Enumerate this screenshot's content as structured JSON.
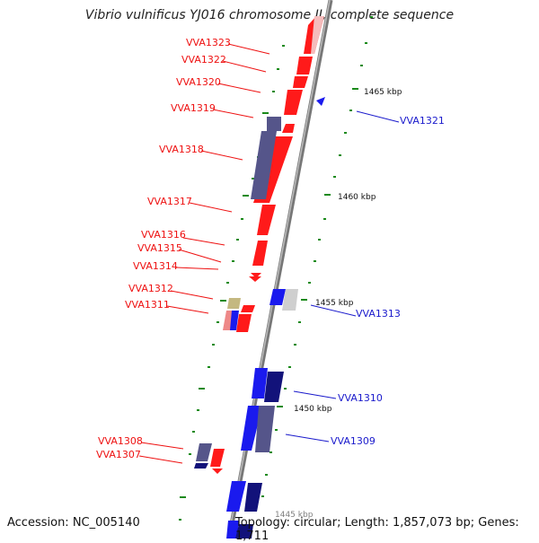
{
  "title": "Vibrio vulnificus YJ016 chromosome II, complete sequence",
  "footer": {
    "accession": "Accession: NC_005140",
    "info": "Topology: circular; Length: 1,857,073 bp; Genes: 1,711"
  },
  "colors": {
    "forward_label": "#ee1111",
    "reverse_label": "#1a1acc",
    "red_gene": "#ff1a1a",
    "blue_gene": "#1a1aee",
    "purple_gene": "#55558a",
    "tick": "#1a8a1a",
    "backbone": "#888888"
  },
  "kbp_labels": [
    "1465 kbp",
    "1460 kbp",
    "1455 kbp",
    "1450 kbp",
    "1445 kbp"
  ],
  "left_genes": [
    "VVA1323",
    "VVA1322",
    "VVA1320",
    "VVA1319",
    "VVA1318",
    "VVA1317",
    "VVA1316",
    "VVA1315",
    "VVA1314",
    "VVA1312",
    "VVA1311",
    "VVA1308",
    "VVA1307"
  ],
  "right_genes": [
    "VVA1321",
    "VVA1313",
    "VVA1310",
    "VVA1309"
  ]
}
